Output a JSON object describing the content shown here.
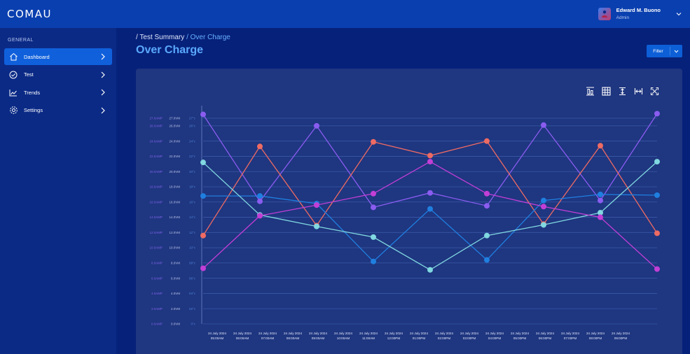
{
  "app": {
    "logo": "COMAU",
    "user": {
      "name": "Edward M. Buono",
      "role": "Admin"
    }
  },
  "sidebar": {
    "section": "GENERAL",
    "items": [
      {
        "label": "Dashboard",
        "icon": "home-icon",
        "active": true
      },
      {
        "label": "Test",
        "icon": "check-circle-icon",
        "active": false
      },
      {
        "label": "Trends",
        "icon": "line-chart-icon",
        "active": false
      },
      {
        "label": "Settings",
        "icon": "gear-icon",
        "active": false
      }
    ]
  },
  "breadcrumb": {
    "parent": "/ Test Summary",
    "current": "/ Over Charge"
  },
  "page": {
    "title": "Over Charge",
    "filter_label": "Filter"
  },
  "toolbar": [
    "align-bottom-icon",
    "grid-icon",
    "align-vertical-icon",
    "fit-width-icon",
    "fullscreen-icon"
  ],
  "colors": {
    "background": "#06217a",
    "topbar": "#0a3fb0",
    "sidebar": "#0b2a86",
    "active_item": "#1060dc",
    "card": "#1f3680",
    "title": "#5aa9ff"
  },
  "chart_data": {
    "type": "line",
    "axes": [
      {
        "color": "#7e63e8",
        "ticks": [
          "0.0AMP",
          "2.0AMP",
          "4.0AMP",
          "6.0AMP",
          "8.0AMP",
          "10.0AMP",
          "12.0AMP",
          "14.0AMP",
          "16.0AMP",
          "18.0AMP",
          "20.0AMP",
          "22.0AMP",
          "24.0AMP",
          "26.0AMP",
          "27.0AMP"
        ]
      },
      {
        "color": "#b9c3e6",
        "ticks": [
          "0.0VM",
          "2.0VM",
          "4.0VM",
          "6.0VM",
          "8.0VM",
          "10.0VM",
          "12.0VM",
          "14.0VM",
          "16.0VM",
          "18.0VM",
          "20.0VM",
          "22.0VM",
          "24.0VM",
          "26.0VM",
          "27.0VM"
        ]
      },
      {
        "color": "#4d83d8",
        "ticks": [
          "0°c",
          "02°c",
          "04°c",
          "06°c",
          "08°c",
          "10°c",
          "12°c",
          "14°c",
          "16°c",
          "18°c",
          "20°c",
          "22°c",
          "24°c",
          "26°c",
          "27°c"
        ]
      }
    ],
    "ylim": [
      0,
      27
    ],
    "categories": [
      [
        "24 July 2024",
        "05:00AM"
      ],
      [
        "24 July 2024",
        "06:00AM"
      ],
      [
        "24 July 2024",
        "07:00AM"
      ],
      [
        "24 July 2024",
        "08:00AM"
      ],
      [
        "24 July 2024",
        "09:00AM"
      ],
      [
        "24 July 2024",
        "10:00AM"
      ],
      [
        "24 July 2024",
        "11:00AM"
      ],
      [
        "24 July 2024",
        "12:00PM"
      ],
      [
        "24 July 2024",
        "01:00PM"
      ],
      [
        "24 July 2024",
        "02:00PM"
      ],
      [
        "24 July 2024",
        "03:00PM"
      ],
      [
        "24 July 2024",
        "04:00PM"
      ],
      [
        "24 July 2024",
        "05:00PM"
      ],
      [
        "24 July 2024",
        "06:00PM"
      ],
      [
        "24 July 2024",
        "07:00PM"
      ],
      [
        "24 July 2024",
        "08:00PM"
      ],
      [
        "24 July 2024",
        "09:00PM"
      ]
    ],
    "series": [
      {
        "color": "#8a5cf0",
        "points": [
          [
            0,
            27.5
          ],
          [
            1,
            16.1
          ],
          [
            2,
            26.0
          ],
          [
            3,
            15.3
          ],
          [
            4,
            17.2
          ],
          [
            5,
            15.5
          ],
          [
            6,
            26.1
          ],
          [
            7,
            16.2
          ],
          [
            8,
            27.6
          ]
        ]
      },
      {
        "color": "#ee6b63",
        "points": [
          [
            0,
            11.6
          ],
          [
            1,
            23.3
          ],
          [
            2,
            12.9
          ],
          [
            3,
            23.9
          ],
          [
            4,
            22.1
          ],
          [
            5,
            24.0
          ],
          [
            6,
            13.1
          ],
          [
            7,
            23.4
          ],
          [
            8,
            11.9
          ]
        ]
      },
      {
        "color": "#1f7fe0",
        "points": [
          [
            0,
            16.8
          ],
          [
            1,
            16.8
          ],
          [
            2,
            15.8
          ],
          [
            3,
            8.2
          ],
          [
            4,
            15.1
          ],
          [
            5,
            8.4
          ],
          [
            6,
            16.2
          ],
          [
            7,
            17.0
          ],
          [
            8,
            16.9
          ]
        ]
      },
      {
        "color": "#80d8e0",
        "points": [
          [
            0,
            21.2
          ],
          [
            1,
            14.3
          ],
          [
            2,
            12.8
          ],
          [
            3,
            11.4
          ],
          [
            4,
            7.1
          ],
          [
            5,
            11.6
          ],
          [
            6,
            13.0
          ],
          [
            7,
            14.6
          ],
          [
            8,
            21.3
          ]
        ]
      },
      {
        "color": "#c23fd6",
        "points": [
          [
            0,
            7.3
          ],
          [
            1,
            14.2
          ],
          [
            2,
            15.6
          ],
          [
            3,
            17.1
          ],
          [
            4,
            21.3
          ],
          [
            5,
            17.1
          ],
          [
            6,
            15.4
          ],
          [
            7,
            14.0
          ],
          [
            8,
            7.2
          ]
        ]
      }
    ],
    "grid": true
  }
}
